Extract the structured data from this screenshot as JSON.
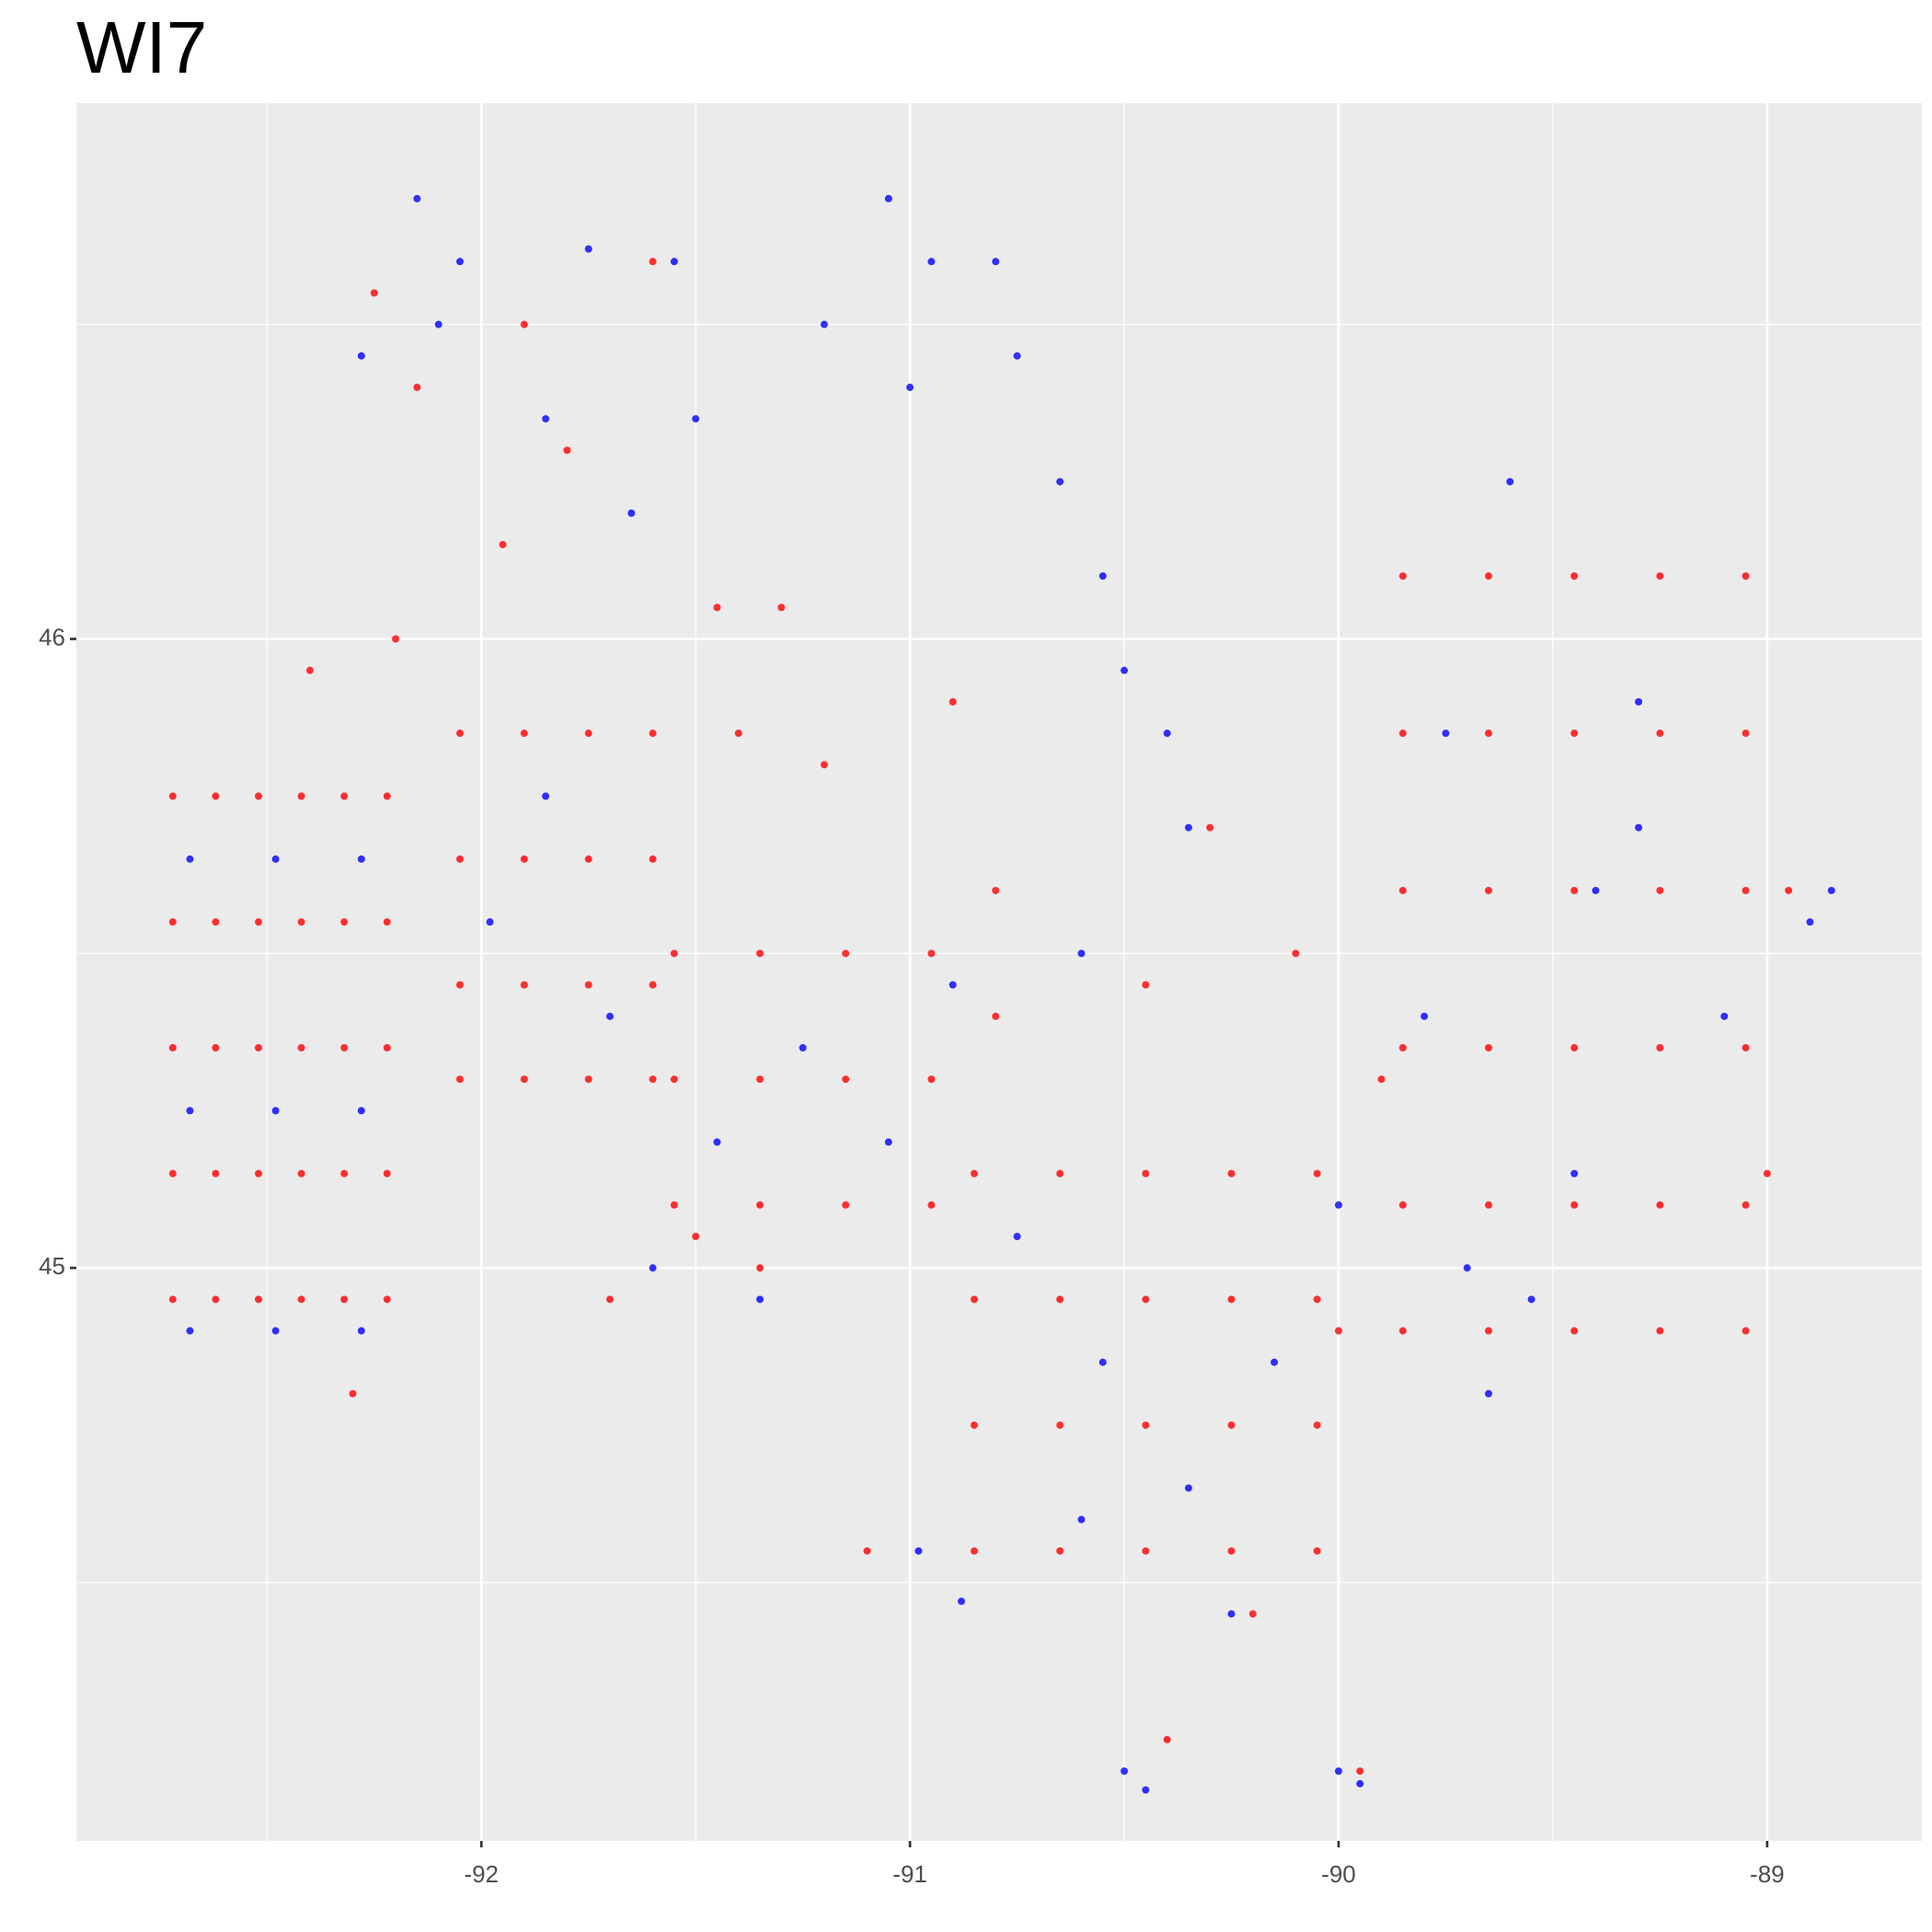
{
  "chart_data": {
    "type": "scatter",
    "title": "WI7",
    "xlim": [
      -92.945,
      -88.639
    ],
    "ylim": [
      44.089,
      46.852
    ],
    "xticks": [
      -92,
      -91,
      -90,
      -89
    ],
    "yticks": [
      45,
      46
    ],
    "xminor": [
      -92.5,
      -91.5,
      -90.5,
      -89.5
    ],
    "yminor": [
      44.5,
      45.5,
      46.5
    ],
    "grid": true,
    "series": [
      {
        "color": "#ff0000",
        "x": [
          -92.72,
          -92.62,
          -92.52,
          -92.42,
          -92.32,
          -92.22,
          -92.72,
          -92.62,
          -92.52,
          -92.42,
          -92.32,
          -92.22,
          -92.72,
          -92.62,
          -92.52,
          -92.42,
          -92.32,
          -92.22,
          -92.72,
          -92.62,
          -92.52,
          -92.42,
          -92.32,
          -92.22,
          -92.72,
          -92.62,
          -92.52,
          -92.42,
          -92.32,
          -92.22,
          -92.05,
          -91.9,
          -91.75,
          -91.6,
          -92.05,
          -91.9,
          -91.75,
          -91.6,
          -92.05,
          -91.9,
          -91.75,
          -91.6,
          -92.05,
          -91.9,
          -91.75,
          -91.6,
          -92.15,
          -91.95,
          -91.8,
          -91.45,
          -91.3,
          -91.4,
          -92.25,
          -91.6,
          -91.9,
          -92.2,
          -92.4,
          -91.55,
          -91.35,
          -91.15,
          -90.95,
          -91.55,
          -91.35,
          -91.15,
          -90.95,
          -91.55,
          -91.35,
          -91.15,
          -90.95,
          -91.35,
          -91.5,
          -90.8,
          -90.8,
          -90.85,
          -90.65,
          -90.45,
          -90.25,
          -90.05,
          -90.85,
          -90.65,
          -90.45,
          -90.25,
          -90.05,
          -90.85,
          -90.65,
          -90.45,
          -90.25,
          -90.05,
          -90.85,
          -90.65,
          -90.45,
          -90.25,
          -90.05,
          -89.85,
          -89.65,
          -89.45,
          -89.25,
          -89.05,
          -89.85,
          -89.65,
          -89.45,
          -89.25,
          -89.05,
          -89.85,
          -89.65,
          -89.45,
          -89.25,
          -89.05,
          -89.85,
          -89.65,
          -89.45,
          -89.25,
          -89.05,
          -89.85,
          -89.65,
          -89.45,
          -89.25,
          -89.05,
          -89.85,
          -89.65,
          -89.45,
          -89.25,
          -89.05,
          -90.3,
          -90.1,
          -90.45,
          -89.9,
          -90.0,
          -90.2,
          -90.4,
          -89.95,
          -91.2,
          -90.9,
          -89.0,
          -88.95,
          -91.1,
          -92.3,
          -91.7
        ],
        "values": [
          45.75,
          45.75,
          45.75,
          45.75,
          45.75,
          45.75,
          45.55,
          45.55,
          45.55,
          45.55,
          45.55,
          45.55,
          45.35,
          45.35,
          45.35,
          45.35,
          45.35,
          45.35,
          45.15,
          45.15,
          45.15,
          45.15,
          45.15,
          45.15,
          44.95,
          44.95,
          44.95,
          44.95,
          44.95,
          44.95,
          45.85,
          45.85,
          45.85,
          45.85,
          45.65,
          45.65,
          45.65,
          45.65,
          45.45,
          45.45,
          45.45,
          45.45,
          45.3,
          45.3,
          45.3,
          45.3,
          46.4,
          46.15,
          46.3,
          46.05,
          46.05,
          45.85,
          46.55,
          46.6,
          46.5,
          46.0,
          45.95,
          45.5,
          45.5,
          45.5,
          45.5,
          45.3,
          45.3,
          45.3,
          45.3,
          45.1,
          45.1,
          45.1,
          45.1,
          45.0,
          45.05,
          45.4,
          45.6,
          45.15,
          45.15,
          45.15,
          45.15,
          45.15,
          44.95,
          44.95,
          44.95,
          44.95,
          44.95,
          44.75,
          44.75,
          44.75,
          44.75,
          44.75,
          44.55,
          44.55,
          44.55,
          44.55,
          44.55,
          46.1,
          46.1,
          46.1,
          46.1,
          46.1,
          45.85,
          45.85,
          45.85,
          45.85,
          45.85,
          45.6,
          45.6,
          45.6,
          45.6,
          45.6,
          45.35,
          45.35,
          45.35,
          45.35,
          45.35,
          45.1,
          45.1,
          45.1,
          45.1,
          45.1,
          44.9,
          44.9,
          44.9,
          44.9,
          44.9,
          45.7,
          45.5,
          45.45,
          45.3,
          44.9,
          44.45,
          44.25,
          44.2,
          45.8,
          45.9,
          45.15,
          45.6,
          44.55,
          44.8,
          44.95
        ]
      },
      {
        "color": "#0000ff",
        "x": [
          -92.68,
          -92.48,
          -92.28,
          -92.68,
          -92.48,
          -92.28,
          -92.68,
          -92.48,
          -92.28,
          -91.98,
          -91.7,
          -91.85,
          -92.15,
          -92.05,
          -91.75,
          -91.55,
          -92.28,
          -91.85,
          -91.5,
          -92.1,
          -91.65,
          -91.2,
          -91.05,
          -90.95,
          -90.8,
          -90.75,
          -91.0,
          -90.65,
          -90.55,
          -90.5,
          -90.4,
          -90.35,
          -90.6,
          -91.45,
          -91.25,
          -91.05,
          -91.6,
          -91.35,
          -90.9,
          -90.75,
          -90.55,
          -90.35,
          -90.15,
          -90.0,
          -90.6,
          -90.25,
          -90.98,
          -90.88,
          -90.5,
          -90.45,
          -90.0,
          -89.95,
          -89.7,
          -89.55,
          -89.65,
          -89.45,
          -89.75,
          -89.3,
          -89.4,
          -88.9,
          -88.85,
          -89.1,
          -89.3,
          -89.8,
          -89.6
        ],
        "values": [
          45.65,
          45.65,
          45.65,
          45.25,
          45.25,
          45.25,
          44.9,
          44.9,
          44.9,
          45.55,
          45.4,
          45.75,
          46.7,
          46.6,
          46.62,
          46.6,
          46.45,
          46.35,
          46.35,
          46.5,
          46.2,
          46.5,
          46.7,
          46.6,
          46.6,
          46.45,
          46.4,
          46.25,
          46.1,
          45.95,
          45.85,
          45.7,
          45.5,
          45.2,
          45.35,
          45.2,
          45.0,
          44.95,
          45.45,
          45.05,
          44.85,
          44.65,
          44.85,
          45.1,
          44.6,
          44.45,
          44.55,
          44.47,
          44.2,
          44.17,
          44.2,
          44.18,
          45.0,
          44.95,
          44.8,
          45.15,
          45.85,
          45.7,
          45.6,
          45.55,
          45.6,
          45.4,
          45.9,
          45.4,
          46.25
        ]
      }
    ]
  }
}
